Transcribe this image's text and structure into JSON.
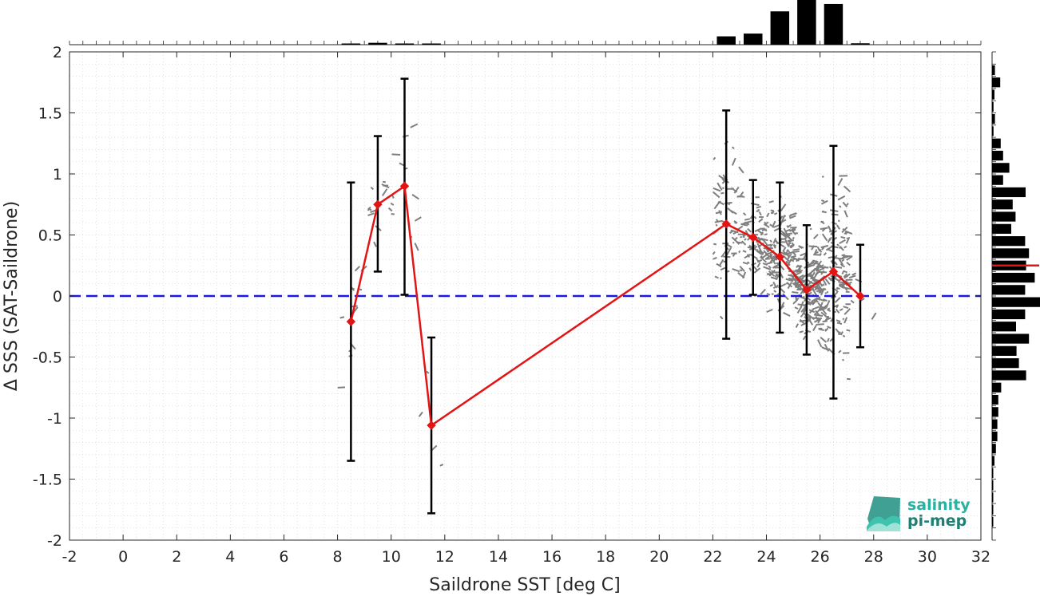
{
  "chart_data": {
    "type": "scatter",
    "xlabel": "Saildrone SST [deg C]",
    "ylabel": "Δ SSS (SAT-Saildrone)",
    "xlim": [
      -2,
      32
    ],
    "ylim": [
      -2,
      2
    ],
    "x_ticks": [
      -2,
      0,
      2,
      4,
      6,
      8,
      10,
      12,
      14,
      16,
      18,
      20,
      22,
      24,
      26,
      28,
      30,
      32
    ],
    "y_ticks": [
      -2,
      -1.5,
      -1,
      -0.5,
      0,
      0.5,
      1,
      1.5,
      2
    ],
    "grid": "dotted minor",
    "reference_line": {
      "y": 0,
      "style": "dashed",
      "color": "#1a1adf"
    },
    "mean_line_color": "#e31414",
    "errorbar_color": "#000000",
    "scatter_color": "#7f7f7f",
    "series": [
      {
        "type": "errorbar-line",
        "x": [
          8.5,
          9.5,
          10.5,
          11.5,
          22.5,
          23.5,
          24.5,
          25.5,
          26.5,
          27.5
        ],
        "y": [
          -0.21,
          0.75,
          0.9,
          -1.06,
          0.59,
          0.48,
          0.32,
          0.05,
          0.2,
          0.0
        ],
        "err_low": [
          -1.35,
          0.2,
          0.01,
          -1.78,
          -0.35,
          0.01,
          -0.3,
          -0.48,
          -0.84,
          -0.42
        ],
        "err_high": [
          0.93,
          1.31,
          1.78,
          -0.34,
          1.52,
          0.95,
          0.93,
          0.58,
          1.23,
          0.42
        ]
      }
    ],
    "x_histogram": {
      "bin_centers": [
        8.5,
        9.5,
        10.5,
        11.5,
        22.5,
        23.5,
        24.5,
        25.5,
        26.5,
        27.5
      ],
      "relative_counts": [
        0.02,
        0.04,
        0.02,
        0.02,
        0.18,
        0.24,
        0.72,
        1.0,
        0.88,
        0.03
      ]
    },
    "y_histogram": {
      "bin_centers": [
        1.85,
        1.75,
        1.65,
        1.55,
        1.45,
        1.35,
        1.25,
        1.15,
        1.05,
        0.95,
        0.85,
        0.75,
        0.65,
        0.55,
        0.45,
        0.35,
        0.25,
        0.15,
        0.05,
        -0.05,
        -0.15,
        -0.25,
        -0.35,
        -0.45,
        -0.55,
        -0.65,
        -0.75,
        -0.85,
        -0.95,
        -1.05,
        -1.15,
        -1.25,
        -1.35,
        -1.45,
        -1.55,
        -1.65,
        -1.75,
        -1.85
      ],
      "relative_counts": [
        0.06,
        0.17,
        0.05,
        0.03,
        0.06,
        0.03,
        0.18,
        0.23,
        0.36,
        0.23,
        0.7,
        0.43,
        0.49,
        0.4,
        0.69,
        0.77,
        0.71,
        0.89,
        0.69,
        1.0,
        0.69,
        0.5,
        0.77,
        0.51,
        0.56,
        0.71,
        0.19,
        0.13,
        0.13,
        0.11,
        0.11,
        0.08,
        0.05,
        0.02,
        0.02,
        0.02,
        0.02,
        0.02
      ],
      "mean": 0.25
    }
  },
  "logo": {
    "line1": "salinity",
    "line2": "pi-mep"
  }
}
